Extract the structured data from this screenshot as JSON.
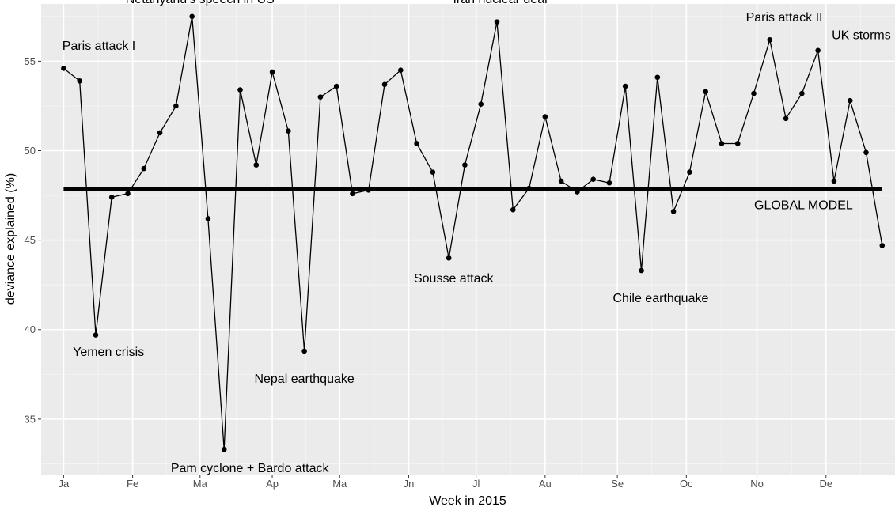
{
  "chart_data": {
    "type": "line",
    "xlabel": "Week in 2015",
    "ylabel": "deviance explained (%)",
    "x_ticks": [
      {
        "label": "Ja",
        "week": 1
      },
      {
        "label": "Fe",
        "week": 5.3
      },
      {
        "label": "Ma",
        "week": 9.5
      },
      {
        "label": "Ap",
        "week": 14
      },
      {
        "label": "Ma",
        "week": 18.2
      },
      {
        "label": "Jn",
        "week": 22.5
      },
      {
        "label": "Jl",
        "week": 26.7
      },
      {
        "label": "Au",
        "week": 31
      },
      {
        "label": "Se",
        "week": 35.5
      },
      {
        "label": "Oc",
        "week": 39.8
      },
      {
        "label": "No",
        "week": 44.2
      },
      {
        "label": "De",
        "week": 48.5
      }
    ],
    "y_ticks": [
      35,
      40,
      45,
      50,
      55
    ],
    "xlim": [
      -0.4,
      52.8
    ],
    "ylim": [
      31.9,
      58.2
    ],
    "grid": true,
    "series": [
      {
        "values": [
          [
            1,
            54.6
          ],
          [
            2,
            53.9
          ],
          [
            3,
            39.7
          ],
          [
            4,
            47.4
          ],
          [
            5,
            47.6
          ],
          [
            6,
            49.0
          ],
          [
            7,
            51.0
          ],
          [
            8,
            52.5
          ],
          [
            9,
            57.5
          ],
          [
            10,
            46.2
          ],
          [
            11,
            33.3
          ],
          [
            12,
            53.4
          ],
          [
            13,
            49.2
          ],
          [
            14,
            54.4
          ],
          [
            15,
            51.1
          ],
          [
            16,
            38.8
          ],
          [
            17,
            53.0
          ],
          [
            18,
            53.6
          ],
          [
            19,
            47.6
          ],
          [
            20,
            47.8
          ],
          [
            21,
            53.7
          ],
          [
            22,
            54.5
          ],
          [
            23,
            50.4
          ],
          [
            24,
            48.8
          ],
          [
            25,
            44.0
          ],
          [
            26,
            49.2
          ],
          [
            27,
            52.6
          ],
          [
            28,
            57.2
          ],
          [
            29,
            46.7
          ],
          [
            30,
            47.9
          ],
          [
            31,
            51.9
          ],
          [
            32,
            48.3
          ],
          [
            33,
            47.7
          ],
          [
            34,
            48.4
          ],
          [
            35,
            48.2
          ],
          [
            36,
            53.6
          ],
          [
            37,
            43.3
          ],
          [
            38,
            54.1
          ],
          [
            39,
            46.6
          ],
          [
            40,
            48.8
          ],
          [
            41,
            53.3
          ],
          [
            42,
            50.4
          ],
          [
            43,
            50.4
          ],
          [
            44,
            53.2
          ],
          [
            45,
            56.2
          ],
          [
            46,
            51.8
          ],
          [
            47,
            53.2
          ],
          [
            48,
            55.6
          ],
          [
            49,
            48.3
          ],
          [
            50,
            52.8
          ],
          [
            51,
            49.9
          ],
          [
            52,
            44.7
          ]
        ]
      }
    ],
    "reference_line": {
      "value": 47.85,
      "x_range": [
        1,
        52
      ],
      "label": "GLOBAL MODEL"
    },
    "annotations": [
      {
        "text": "Paris attack I",
        "week": 3.2,
        "y": 55.9
      },
      {
        "text": "Yemen crisis",
        "week": 3.8,
        "y": 38.8
      },
      {
        "text": "Netanyahu's speech in US",
        "week": 9.5,
        "y": 58.5
      },
      {
        "text": "Pam cyclone + Bardo attack",
        "week": 12.6,
        "y": 32.3
      },
      {
        "text": "Nepal earthquake",
        "week": 16,
        "y": 37.3
      },
      {
        "text": "Sousse attack",
        "week": 25.3,
        "y": 42.9
      },
      {
        "text": "Iran nuclear deal",
        "week": 28.2,
        "y": 58.5
      },
      {
        "text": "Chile earthquake",
        "week": 38.2,
        "y": 41.8
      },
      {
        "text": "Paris attack II",
        "week": 45.9,
        "y": 57.5
      },
      {
        "text": "UK storms",
        "week": 50.7,
        "y": 56.5
      },
      {
        "text": "GLOBAL MODEL",
        "week": 47.1,
        "y": 47.0
      }
    ]
  }
}
